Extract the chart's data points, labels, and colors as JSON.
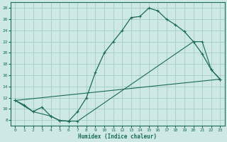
{
  "xlabel": "Humidex (Indice chaleur)",
  "bg_color": "#cde8e5",
  "line_color": "#1a6b5a",
  "grid_color": "#aacfcc",
  "xlim": [
    -0.5,
    23.5
  ],
  "ylim": [
    7,
    29
  ],
  "yticks": [
    8,
    10,
    12,
    14,
    16,
    18,
    20,
    22,
    24,
    26,
    28
  ],
  "xticks": [
    0,
    1,
    2,
    3,
    4,
    5,
    6,
    7,
    8,
    9,
    10,
    11,
    12,
    13,
    14,
    15,
    16,
    17,
    18,
    19,
    20,
    21,
    22,
    23
  ],
  "curve1_x": [
    0,
    1,
    2,
    3,
    4,
    5,
    6,
    7,
    8,
    9,
    10,
    11,
    12,
    13,
    14,
    15,
    16,
    17,
    18,
    19,
    20,
    21,
    22,
    23
  ],
  "curve1_y": [
    11.5,
    10.7,
    9.5,
    10.3,
    8.7,
    7.9,
    7.8,
    9.5,
    12.0,
    16.5,
    20.0,
    22.0,
    24.0,
    26.3,
    26.5,
    28.0,
    27.5,
    26.0,
    25.0,
    23.8,
    22.0,
    19.8,
    17.0,
    15.3
  ],
  "curve2_x": [
    0,
    2,
    4,
    5,
    6,
    7,
    20,
    21,
    22,
    23
  ],
  "curve2_y": [
    11.5,
    9.5,
    8.7,
    7.9,
    7.8,
    7.8,
    22.0,
    22.0,
    17.0,
    15.3
  ],
  "curve3_x": [
    0,
    23
  ],
  "curve3_y": [
    11.5,
    15.3
  ]
}
